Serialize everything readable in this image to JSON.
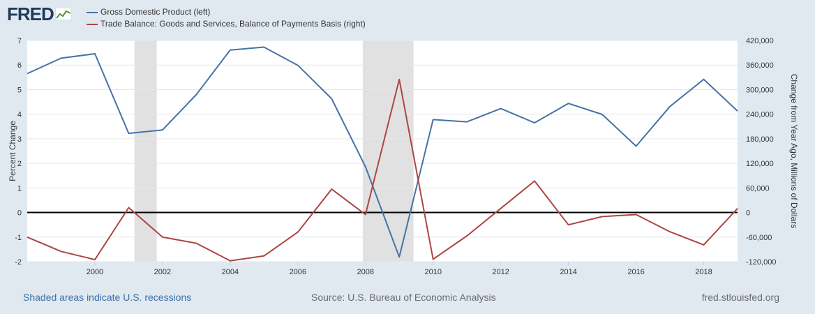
{
  "brand": {
    "logo": "FRED",
    "logo_icon": "chart-line-icon"
  },
  "colors": {
    "gdp": "#4572a7",
    "trade": "#aa4643",
    "background": "#e1e9f0",
    "plot": "#ffffff",
    "recession": "#e1e1e1"
  },
  "chart_data": {
    "type": "line",
    "x": [
      1998,
      1999,
      2000,
      2001,
      2002,
      2003,
      2004,
      2005,
      2006,
      2007,
      2008,
      2009,
      2010,
      2011,
      2012,
      2013,
      2014,
      2015,
      2016,
      2017,
      2018,
      2019
    ],
    "series": [
      {
        "name": "Gross Domestic Product (left)",
        "axis": "left",
        "color": "#4572a7",
        "values": [
          5.65,
          6.28,
          6.46,
          3.22,
          3.36,
          4.8,
          6.61,
          6.73,
          5.99,
          4.63,
          1.86,
          -1.81,
          3.78,
          3.69,
          4.23,
          3.65,
          4.44,
          3.99,
          2.7,
          4.31,
          5.42,
          4.13
        ]
      },
      {
        "name": "Trade Balance: Goods and Services, Balance of Payments Basis (right)",
        "axis": "right",
        "color": "#aa4643",
        "values": [
          -60000,
          -95000,
          -115000,
          12000,
          -60000,
          -75000,
          -118000,
          -106000,
          -48000,
          57000,
          -5000,
          325000,
          -114000,
          -57000,
          10000,
          77000,
          -30000,
          -10000,
          -5000,
          -47000,
          -79000,
          10000
        ]
      }
    ],
    "recessions": [
      [
        2001.17,
        2001.83
      ],
      [
        2007.92,
        2009.42
      ]
    ],
    "xlim": [
      1998,
      2019
    ],
    "xticks": [
      "2000",
      "2002",
      "2004",
      "2006",
      "2008",
      "2010",
      "2012",
      "2014",
      "2016",
      "2018"
    ],
    "ylim_left": [
      -2,
      7
    ],
    "yticks_left": [
      "-2",
      "-1",
      "0",
      "1",
      "2",
      "3",
      "4",
      "5",
      "6",
      "7"
    ],
    "ylim_right": [
      -120000,
      420000
    ],
    "yticks_right": [
      "-120,000",
      "-60,000",
      "0",
      "60,000",
      "120,000",
      "180,000",
      "240,000",
      "300,000",
      "360,000",
      "420,000"
    ],
    "ylabel_left": "Percent Change",
    "ylabel_right": "Change from Year Ago, Millions of Dollars",
    "legend": "top-left",
    "grid": true
  },
  "footer": {
    "recession_note": "Shaded areas indicate U.S. recessions",
    "source": "Source: U.S. Bureau of Economic Analysis",
    "site": "fred.stlouisfed.org"
  }
}
